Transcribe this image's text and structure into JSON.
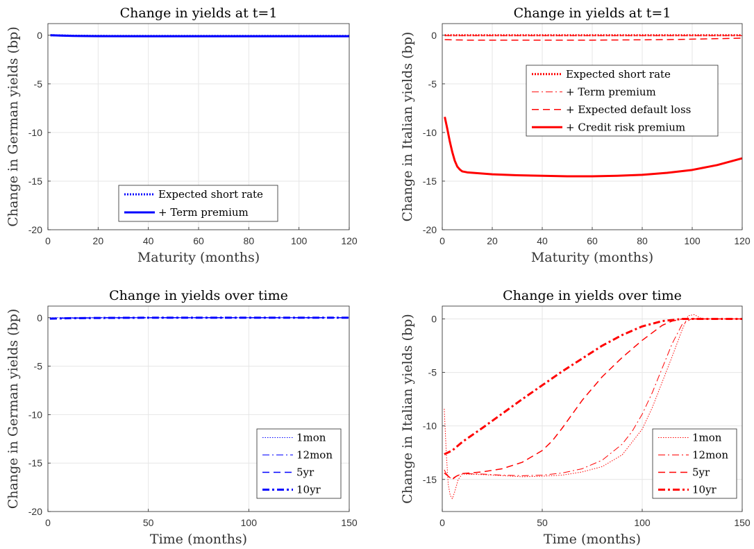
{
  "chart_data": [
    {
      "type": "line",
      "title": "Change in yields at t=1",
      "xlabel": "Maturity (months)",
      "ylabel": "Change in German yields (bp)",
      "xlim": [
        0,
        120
      ],
      "ylim": [
        -20,
        1.2
      ],
      "xticks": [
        "0",
        "20",
        "40",
        "60",
        "80",
        "100",
        "120"
      ],
      "yticks": [
        "0",
        "-5",
        "-10",
        "-15",
        "-20"
      ],
      "grid": true,
      "legend_position": "bottom-center",
      "color": "#0000ff",
      "series": [
        {
          "name": "Expected short rate",
          "style": "dotted",
          "width": 3,
          "x": [
            1,
            5,
            10,
            20,
            40,
            60,
            80,
            100,
            120
          ],
          "y": [
            0,
            -0.02,
            -0.05,
            -0.07,
            -0.08,
            -0.08,
            -0.08,
            -0.08,
            -0.08
          ]
        },
        {
          "name": "+ Term premium",
          "style": "solid",
          "width": 3,
          "x": [
            1,
            5,
            10,
            20,
            40,
            60,
            80,
            100,
            120
          ],
          "y": [
            0,
            -0.03,
            -0.07,
            -0.09,
            -0.1,
            -0.1,
            -0.1,
            -0.1,
            -0.1
          ]
        }
      ]
    },
    {
      "type": "line",
      "title": "Change in yields at t=1",
      "xlabel": "Maturity (months)",
      "ylabel": "Change in Italian yields (bp)",
      "xlim": [
        0,
        120
      ],
      "ylim": [
        -20,
        1.2
      ],
      "xticks": [
        "0",
        "20",
        "40",
        "60",
        "80",
        "100",
        "120"
      ],
      "yticks": [
        "0",
        "-5",
        "-10",
        "-15",
        "-20"
      ],
      "grid": true,
      "legend_position": "top-right",
      "color": "#ff0000",
      "series": [
        {
          "name": "Expected short rate",
          "style": "dotted",
          "width": 3,
          "x": [
            1,
            20,
            60,
            120
          ],
          "y": [
            0,
            0,
            0,
            0
          ]
        },
        {
          "name": "+ Term premium",
          "style": "dashdot",
          "width": 1,
          "x": [
            1,
            20,
            60,
            120
          ],
          "y": [
            -0.05,
            -0.05,
            -0.05,
            -0.05
          ]
        },
        {
          "name": "+ Expected default loss",
          "style": "dashed",
          "width": 1.5,
          "x": [
            1,
            10,
            30,
            60,
            90,
            120
          ],
          "y": [
            -0.45,
            -0.5,
            -0.5,
            -0.5,
            -0.45,
            -0.3
          ]
        },
        {
          "name": "+ Credit risk premium",
          "style": "solid",
          "width": 3,
          "x": [
            1,
            2,
            3,
            4,
            5,
            6,
            7,
            8,
            10,
            15,
            20,
            30,
            40,
            50,
            60,
            70,
            80,
            90,
            100,
            110,
            120
          ],
          "y": [
            -8.4,
            -9.6,
            -10.9,
            -12.0,
            -12.9,
            -13.5,
            -13.8,
            -14.0,
            -14.1,
            -14.2,
            -14.3,
            -14.4,
            -14.45,
            -14.5,
            -14.5,
            -14.45,
            -14.35,
            -14.15,
            -13.85,
            -13.35,
            -12.65
          ]
        }
      ]
    },
    {
      "type": "line",
      "title": "Change in yields over time",
      "xlabel": "Time (months)",
      "ylabel": "Change in German yields (bp)",
      "xlim": [
        0,
        150
      ],
      "ylim": [
        -20,
        1.2
      ],
      "xticks": [
        "0",
        "50",
        "100",
        "150"
      ],
      "yticks": [
        "0",
        "-5",
        "-10",
        "-15",
        "-20"
      ],
      "grid": true,
      "legend_position": "bottom-right",
      "color": "#0000ff",
      "series": [
        {
          "name": "1mon",
          "style": "dotted",
          "width": 1,
          "x": [
            1,
            10,
            30,
            50,
            80,
            120,
            150
          ],
          "y": [
            0,
            0,
            0,
            0,
            0,
            0,
            0
          ]
        },
        {
          "name": "12mon",
          "style": "dashdot",
          "width": 1,
          "x": [
            1,
            10,
            30,
            50,
            80,
            120,
            150
          ],
          "y": [
            -0.05,
            -0.02,
            0,
            0,
            0,
            0,
            0
          ]
        },
        {
          "name": "5yr",
          "style": "dashed",
          "width": 1.5,
          "x": [
            1,
            10,
            30,
            50,
            80,
            120,
            150
          ],
          "y": [
            -0.08,
            -0.04,
            -0.01,
            0,
            0,
            0,
            0
          ]
        },
        {
          "name": "10yr",
          "style": "dashdot",
          "width": 3,
          "x": [
            1,
            10,
            30,
            50,
            80,
            120,
            150
          ],
          "y": [
            -0.1,
            -0.05,
            -0.02,
            0,
            0,
            0,
            0
          ]
        }
      ]
    },
    {
      "type": "line",
      "title": "Change in yields over time",
      "xlabel": "Time (months)",
      "ylabel": "Change in Italian yields (bp)",
      "xlim": [
        0,
        150
      ],
      "ylim": [
        -18,
        1.2
      ],
      "xticks": [
        "0",
        "50",
        "100",
        "150"
      ],
      "yticks": [
        "0",
        "-5",
        "-10",
        "-15"
      ],
      "grid": true,
      "legend_position": "bottom-right",
      "color": "#ff0000",
      "series": [
        {
          "name": "1mon",
          "style": "dotted",
          "width": 1,
          "x": [
            1,
            2,
            3,
            4,
            5,
            6,
            8,
            10,
            20,
            30,
            40,
            50,
            60,
            70,
            80,
            90,
            100,
            105,
            110,
            115,
            120,
            123,
            126,
            130,
            150
          ],
          "y": [
            -8.4,
            -12.5,
            -15.5,
            -16.5,
            -16.8,
            -16.3,
            -15.0,
            -14.5,
            -14.55,
            -14.65,
            -14.75,
            -14.7,
            -14.6,
            -14.3,
            -13.8,
            -12.7,
            -10.3,
            -8.3,
            -5.9,
            -3.5,
            -1.0,
            0.3,
            0.4,
            0,
            0
          ]
        },
        {
          "name": "12mon",
          "style": "dashdot",
          "width": 1,
          "x": [
            1,
            3,
            5,
            7,
            10,
            20,
            30,
            40,
            50,
            60,
            70,
            80,
            90,
            95,
            100,
            105,
            110,
            115,
            120,
            125,
            130,
            150
          ],
          "y": [
            -14.1,
            -14.8,
            -14.9,
            -14.7,
            -14.45,
            -14.5,
            -14.6,
            -14.65,
            -14.6,
            -14.4,
            -14.0,
            -13.2,
            -11.7,
            -10.5,
            -8.9,
            -6.9,
            -4.6,
            -2.3,
            -0.5,
            0.05,
            0,
            0
          ]
        },
        {
          "name": "5yr",
          "style": "dashed",
          "width": 1.5,
          "x": [
            1,
            3,
            5,
            7,
            10,
            20,
            30,
            40,
            50,
            55,
            60,
            65,
            70,
            80,
            90,
            100,
            110,
            115,
            120,
            125,
            130,
            150
          ],
          "y": [
            -14.4,
            -14.7,
            -15.0,
            -14.7,
            -14.45,
            -14.3,
            -14.0,
            -13.4,
            -12.3,
            -11.4,
            -10.2,
            -8.9,
            -7.6,
            -5.4,
            -3.6,
            -2.0,
            -0.6,
            -0.2,
            0,
            0,
            0,
            0
          ]
        },
        {
          "name": "10yr",
          "style": "dashdot",
          "width": 3,
          "x": [
            1,
            5,
            10,
            20,
            30,
            40,
            50,
            60,
            70,
            80,
            90,
            100,
            110,
            120,
            125,
            130,
            150
          ],
          "y": [
            -12.65,
            -12.3,
            -11.5,
            -10.2,
            -8.85,
            -7.5,
            -6.2,
            -4.9,
            -3.7,
            -2.5,
            -1.5,
            -0.7,
            -0.2,
            0,
            0,
            0,
            0
          ]
        }
      ]
    }
  ]
}
